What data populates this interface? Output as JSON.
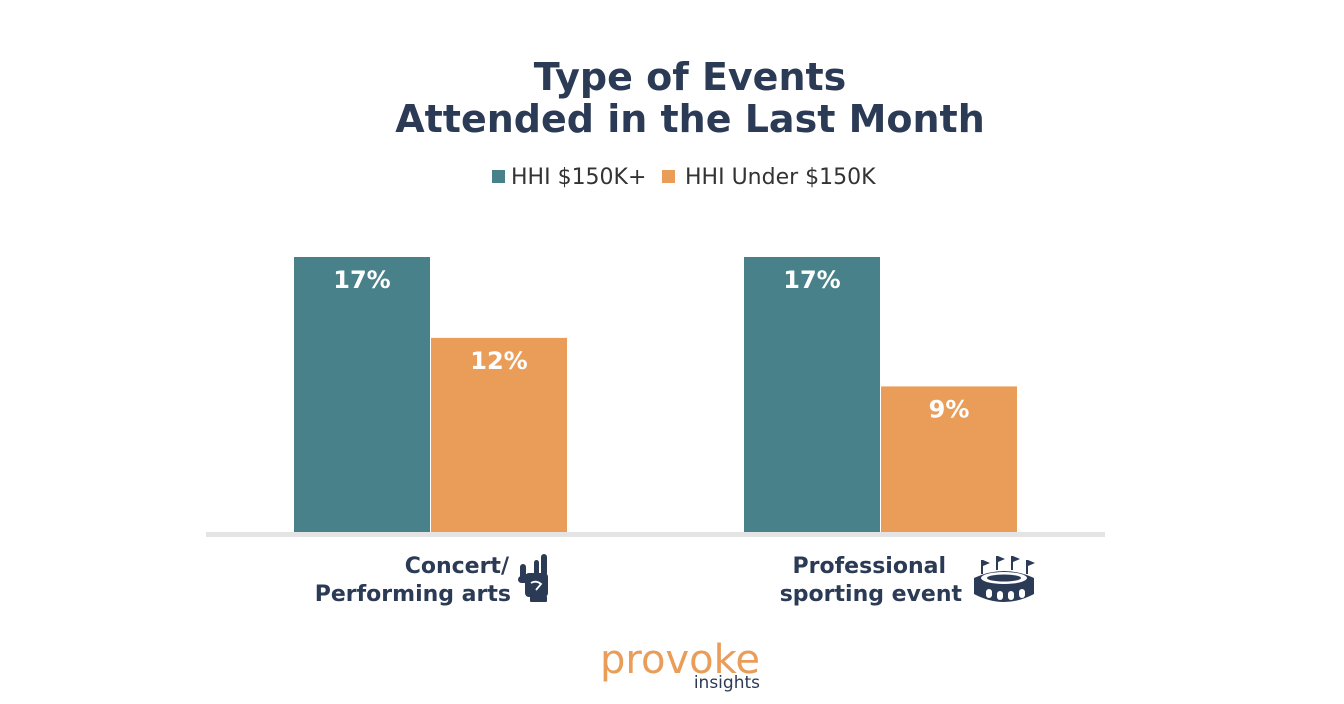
{
  "chart_data": {
    "type": "bar",
    "title_lines": [
      "Type of Events",
      "Attended in the Last Month"
    ],
    "categories": [
      {
        "lines": [
          "Concert/",
          "Performing arts"
        ],
        "icon": "rock-hand-icon"
      },
      {
        "lines": [
          "Professional",
          "sporting event"
        ],
        "icon": "stadium-icon"
      }
    ],
    "series": [
      {
        "name": "HHI $150K+",
        "color": "#48818a",
        "values": [
          17,
          17
        ],
        "labels": [
          "17%",
          "17%"
        ]
      },
      {
        "name": "HHI Under $150K",
        "color": "#ea9d58",
        "values": [
          12,
          9
        ],
        "labels": [
          "12%",
          "9%"
        ]
      }
    ],
    "ylim": [
      0,
      17
    ],
    "grid": false,
    "legend_position": "top-center",
    "xlabel": "",
    "ylabel": ""
  },
  "colors": {
    "title": "#2b3a55",
    "axis": "#e4e4e4",
    "value_label": "#ffffff",
    "category_label": "#2b3a55",
    "brand": "#ea9d58",
    "brand_sub": "#2b3a55"
  },
  "branding": {
    "name": "provoke",
    "tagline": "insights"
  }
}
